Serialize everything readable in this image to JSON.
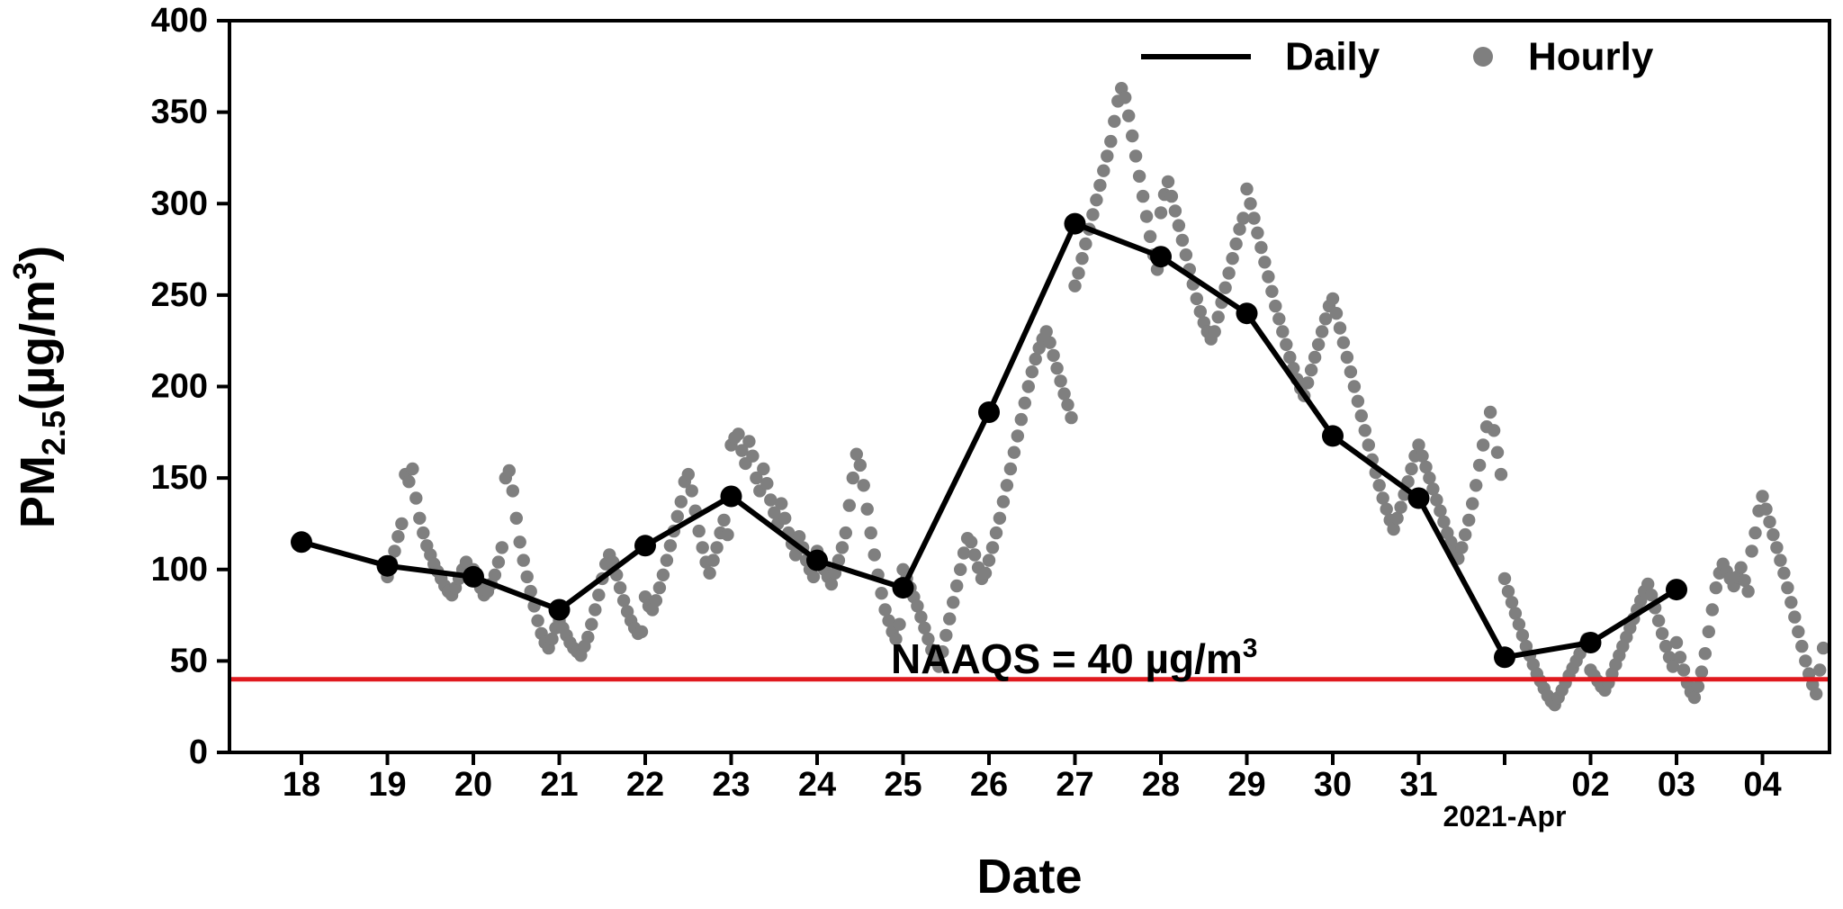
{
  "chart_data": {
    "type": "line+scatter",
    "title": "",
    "xlabel": "Date",
    "ylabel": {
      "base": "PM",
      "sub": "2.5",
      "unit": "(µg/m",
      "sup": "3",
      "close": ")"
    },
    "ylim": [
      0,
      400
    ],
    "yticks": [
      0,
      50,
      100,
      150,
      200,
      250,
      300,
      350,
      400
    ],
    "x_tick_labels": [
      "18",
      "19",
      "20",
      "21",
      "22",
      "23",
      "24",
      "25",
      "26",
      "27",
      "28",
      "29",
      "30",
      "31",
      "",
      "02",
      "03",
      "04"
    ],
    "x_secondary_label": "2021-Apr",
    "grid": false,
    "legend_position": "upper right",
    "legend": [
      {
        "label": "Daily",
        "type": "line",
        "color": "#000000"
      },
      {
        "label": "Hourly",
        "type": "marker",
        "color": "#7f7f7f"
      }
    ],
    "reference_line": {
      "value": 40,
      "label": "NAAQS = 40 µg/m",
      "label_sup": "3",
      "color": "#e0191e"
    },
    "colors": {
      "daily": "#000000",
      "hourly": "#7f7f7f",
      "axes": "#000000"
    },
    "daily": {
      "name": "Daily",
      "x_days_since_mar18": [
        0,
        1,
        2,
        3,
        4,
        5,
        6,
        7,
        8,
        9,
        10,
        11,
        12,
        13,
        14,
        15,
        16
      ],
      "dates": [
        "2021-03-18",
        "2021-03-19",
        "2021-03-20",
        "2021-03-21",
        "2021-03-22",
        "2021-03-23",
        "2021-03-24",
        "2021-03-25",
        "2021-03-26",
        "2021-03-27",
        "2021-03-28",
        "2021-03-29",
        "2021-03-30",
        "2021-03-31",
        "2021-04-01",
        "2021-04-02",
        "2021-04-03"
      ],
      "values": [
        115,
        102,
        96,
        78,
        113,
        140,
        105,
        90,
        186,
        289,
        271,
        240,
        173,
        139,
        52,
        60,
        89
      ]
    },
    "hourly": {
      "name": "Hourly",
      "note": "hourly PM2.5 readings, day index = days since 2021-03-18, 24 values per day (estimated from plot)",
      "by_day": {
        "1": [
          96,
          104,
          110,
          118,
          125,
          152,
          148,
          155,
          139,
          128,
          120,
          113,
          108,
          103,
          99,
          95,
          91,
          88,
          86,
          90,
          95,
          100,
          104,
          98
        ],
        "2": [
          100,
          95,
          90,
          86,
          88,
          92,
          97,
          104,
          112,
          150,
          154,
          143,
          128,
          115,
          105,
          96,
          88,
          80,
          72,
          65,
          60,
          57,
          62,
          68
        ],
        "3": [
          72,
          68,
          64,
          60,
          57,
          55,
          53,
          58,
          63,
          70,
          78,
          86,
          95,
          103,
          108,
          104,
          97,
          90,
          83,
          77,
          72,
          68,
          65,
          66
        ],
        "4": [
          85,
          80,
          78,
          83,
          90,
          97,
          105,
          113,
          121,
          129,
          137,
          148,
          152,
          143,
          132,
          121,
          112,
          104,
          98,
          105,
          112,
          120,
          127,
          119
        ],
        "5": [
          168,
          172,
          174,
          165,
          158,
          170,
          162,
          150,
          143,
          155,
          147,
          138,
          131,
          125,
          136,
          128,
          120,
          114,
          108,
          118,
          112,
          105,
          100,
          96
        ],
        "6": [
          110,
          105,
          100,
          96,
          92,
          98,
          105,
          112,
          120,
          135,
          150,
          163,
          157,
          146,
          133,
          120,
          108,
          97,
          87,
          78,
          72,
          66,
          62,
          70
        ],
        "7": [
          100,
          95,
          90,
          85,
          80,
          74,
          68,
          62,
          56,
          50,
          47,
          55,
          64,
          73,
          82,
          91,
          100,
          109,
          117,
          115,
          108,
          101,
          95,
          98
        ],
        "8": [
          105,
          112,
          120,
          128,
          137,
          146,
          155,
          164,
          173,
          182,
          191,
          200,
          208,
          215,
          221,
          226,
          230,
          224,
          217,
          210,
          203,
          196,
          190,
          183
        ],
        "9": [
          255,
          262,
          270,
          278,
          286,
          294,
          302,
          310,
          318,
          326,
          334,
          345,
          356,
          363,
          358,
          348,
          337,
          326,
          315,
          304,
          293,
          282,
          272,
          264
        ],
        "10": [
          295,
          305,
          312,
          304,
          296,
          288,
          280,
          272,
          264,
          256,
          248,
          241,
          235,
          230,
          226,
          230,
          238,
          246,
          254,
          262,
          270,
          278,
          286,
          292
        ],
        "11": [
          308,
          300,
          292,
          284,
          276,
          268,
          260,
          252,
          244,
          237,
          230,
          223,
          216,
          210,
          204,
          199,
          195,
          202,
          209,
          216,
          223,
          230,
          237,
          244
        ],
        "12": [
          248,
          240,
          232,
          224,
          216,
          208,
          200,
          192,
          184,
          176,
          168,
          160,
          153,
          146,
          139,
          133,
          127,
          122,
          128,
          134,
          141,
          148,
          155,
          162
        ],
        "13": [
          168,
          162,
          156,
          150,
          144,
          138,
          132,
          126,
          120,
          115,
          110,
          106,
          112,
          119,
          127,
          136,
          146,
          157,
          168,
          178,
          186,
          176,
          164,
          152
        ],
        "14": [
          95,
          88,
          82,
          76,
          70,
          64,
          58,
          53,
          48,
          43,
          39,
          35,
          31,
          28,
          26,
          30,
          34,
          38,
          42,
          46,
          50,
          54,
          58,
          62
        ],
        "15": [
          45,
          42,
          39,
          36,
          34,
          38,
          43,
          48,
          53,
          58,
          63,
          68,
          73,
          78,
          83,
          88,
          92,
          86,
          79,
          72,
          65,
          58,
          52,
          47
        ],
        "16": [
          60,
          52,
          45,
          38,
          33,
          30,
          36,
          44,
          54,
          66,
          78,
          90,
          98,
          103,
          99,
          95,
          91,
          96,
          101,
          94,
          88,
          110,
          120,
          132
        ],
        "17": [
          140,
          133,
          126,
          119,
          112,
          105,
          98,
          90,
          82,
          74,
          66,
          58,
          50,
          43,
          37,
          32,
          45,
          57
        ]
      }
    }
  }
}
